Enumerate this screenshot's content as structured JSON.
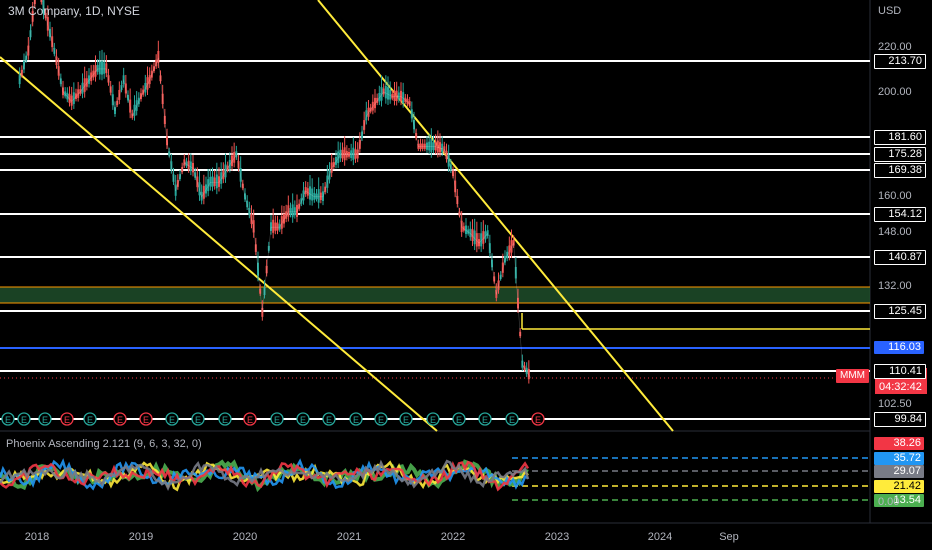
{
  "header": {
    "title": "3M Company, 1D, NYSE",
    "currency": "USD"
  },
  "indicator": {
    "title": "Phoenix Ascending 2.121 (9, 6, 3, 32, 0)"
  },
  "symbol": "MMM",
  "last_price": {
    "value": "108.83",
    "countdown": "04:32:42"
  },
  "chart_data": {
    "type": "line",
    "x_ticks": [
      "2018",
      "2019",
      "2020",
      "2021",
      "2022",
      "2023",
      "2024",
      "Sep"
    ],
    "y_ticks": [
      "220.00",
      "200.00",
      "160.00",
      "148.00",
      "132.00",
      "102.50"
    ],
    "y_scale": "log",
    "horizontal_levels": [
      {
        "label": "213.70",
        "color": "#ffffff"
      },
      {
        "label": "181.60",
        "color": "#ffffff"
      },
      {
        "label": "175.28",
        "color": "#ffffff"
      },
      {
        "label": "169.38",
        "color": "#ffffff"
      },
      {
        "label": "154.12",
        "color": "#ffffff"
      },
      {
        "label": "140.87",
        "color": "#ffffff"
      },
      {
        "label": "125.45",
        "color": "#ffffff"
      },
      {
        "label": "116.03",
        "color": "#2962ff"
      },
      {
        "label": "110.41",
        "color": "#ffffff"
      },
      {
        "label": "99.84",
        "color": "#ffffff"
      }
    ],
    "indicator_levels": [
      {
        "label": "38.26",
        "color": "#f23645"
      },
      {
        "label": "35.72",
        "color": "#2196f3"
      },
      {
        "label": "29.07",
        "color": "#787b86"
      },
      {
        "label": "21.42",
        "color": "#ffeb3b"
      },
      {
        "label": "13.54",
        "color": "#4caf50"
      }
    ],
    "indicator_y_ticks": [
      "0.00"
    ],
    "price_series": [
      [
        "2017-11",
        205
      ],
      [
        "2017-12",
        218
      ],
      [
        "2018-01",
        252
      ],
      [
        "2018-02",
        235
      ],
      [
        "2018-03",
        218
      ],
      [
        "2018-04",
        200
      ],
      [
        "2018-05",
        196
      ],
      [
        "2018-06",
        200
      ],
      [
        "2018-07",
        205
      ],
      [
        "2018-08",
        210
      ],
      [
        "2018-09",
        210
      ],
      [
        "2018-10",
        192
      ],
      [
        "2018-11",
        205
      ],
      [
        "2018-12",
        190
      ],
      [
        "2019-01",
        198
      ],
      [
        "2019-02",
        205
      ],
      [
        "2019-03",
        215
      ],
      [
        "2019-04",
        180
      ],
      [
        "2019-05",
        162
      ],
      [
        "2019-06",
        172
      ],
      [
        "2019-07",
        170
      ],
      [
        "2019-08",
        160
      ],
      [
        "2019-09",
        165
      ],
      [
        "2019-10",
        165
      ],
      [
        "2019-11",
        170
      ],
      [
        "2019-12",
        175
      ],
      [
        "2020-01",
        160
      ],
      [
        "2020-02",
        150
      ],
      [
        "2020-03",
        125
      ],
      [
        "2020-04",
        150
      ],
      [
        "2020-05",
        150
      ],
      [
        "2020-06",
        155
      ],
      [
        "2020-07",
        155
      ],
      [
        "2020-08",
        162
      ],
      [
        "2020-09",
        160
      ],
      [
        "2020-10",
        160
      ],
      [
        "2020-11",
        170
      ],
      [
        "2020-12",
        175
      ],
      [
        "2021-01",
        175
      ],
      [
        "2021-02",
        175
      ],
      [
        "2021-03",
        190
      ],
      [
        "2021-04",
        195
      ],
      [
        "2021-05",
        200
      ],
      [
        "2021-06",
        198
      ],
      [
        "2021-07",
        198
      ],
      [
        "2021-08",
        195
      ],
      [
        "2021-09",
        178
      ],
      [
        "2021-10",
        178
      ],
      [
        "2021-11",
        178
      ],
      [
        "2021-12",
        177
      ],
      [
        "2022-01",
        168
      ],
      [
        "2022-02",
        150
      ],
      [
        "2022-03",
        148
      ],
      [
        "2022-04",
        145
      ],
      [
        "2022-05",
        148
      ],
      [
        "2022-06",
        130
      ],
      [
        "2022-07",
        140
      ],
      [
        "2022-08",
        145
      ],
      [
        "2022-09",
        112
      ],
      [
        "2022-10",
        108.83
      ]
    ]
  }
}
